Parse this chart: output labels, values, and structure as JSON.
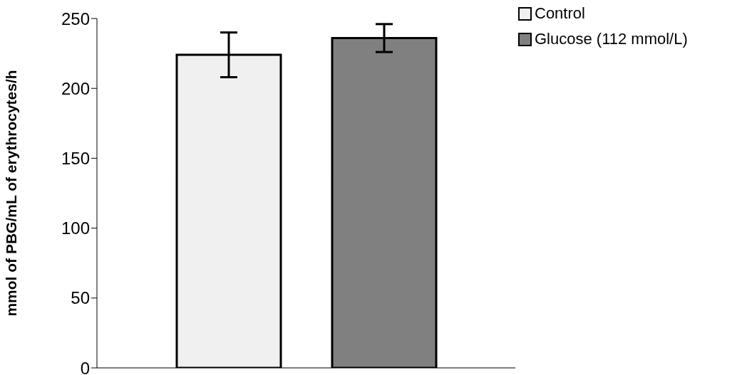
{
  "chart_data": {
    "type": "bar",
    "ylabel": "mmol of PBG/mL of erythrocytes/h",
    "categories": [
      null
    ],
    "series": [
      {
        "name": "Control",
        "color": "#f0f0f0",
        "values": [
          224
        ],
        "errors": [
          16
        ]
      },
      {
        "name": "Glucose (112 mmol/L)",
        "color": "#808080",
        "values": [
          236
        ],
        "errors": [
          10
        ]
      }
    ],
    "ylim": [
      0,
      250
    ],
    "yticks": [
      0,
      50,
      100,
      150,
      200,
      250
    ],
    "grid": false,
    "legend": "top right"
  }
}
